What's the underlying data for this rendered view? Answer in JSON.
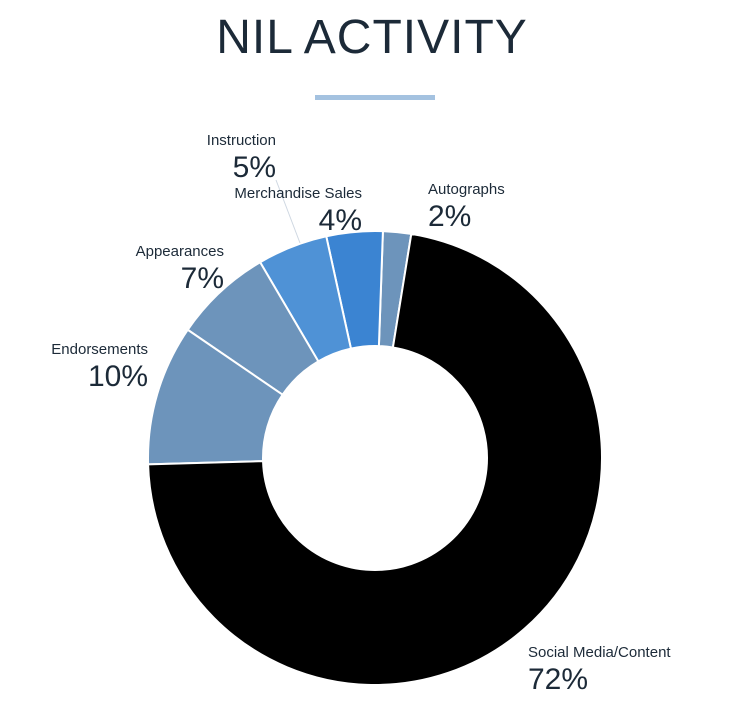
{
  "chart_data": {
    "type": "pie",
    "title": "NIL ACTIVITY",
    "donut": true,
    "categories": [
      "Social Media/Content",
      "Endorsements",
      "Appearances",
      "Instruction",
      "Merchandise Sales",
      "Autographs"
    ],
    "values": [
      72,
      10,
      7,
      5,
      4,
      2
    ],
    "value_labels": [
      "72%",
      "10%",
      "7%",
      "5%",
      "4%",
      "2%"
    ],
    "colors": [
      "#000000",
      "#6d94bb",
      "#6d94bb",
      "#4f92d6",
      "#3b84d2",
      "#6d94bb"
    ],
    "start_category": "Autographs",
    "direction": "counterclockwise",
    "legend": "labels beside slices",
    "accent_color": "#a4c2e0"
  }
}
